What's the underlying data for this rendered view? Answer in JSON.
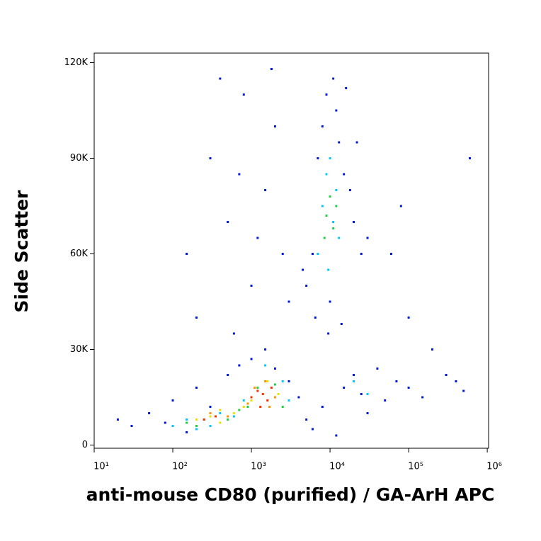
{
  "chart_data": {
    "type": "scatter",
    "xlabel": "anti-mouse CD80 (purified) / GA-ArH APC",
    "ylabel": "Side Scatter",
    "xscale": "log",
    "xlim": [
      10,
      1040000
    ],
    "ylim": [
      -1000,
      123000
    ],
    "xticks": [
      {
        "value": 10,
        "label": "10¹"
      },
      {
        "value": 100,
        "label": "10²"
      },
      {
        "value": 1000,
        "label": "10³"
      },
      {
        "value": 10000,
        "label": "10⁴"
      },
      {
        "value": 100000,
        "label": "10⁵"
      },
      {
        "value": 1000000,
        "label": "10⁶"
      }
    ],
    "yticks": [
      0,
      {
        "value": 30000,
        "label": "30K"
      },
      {
        "value": 60000,
        "label": "60K"
      },
      {
        "value": 90000,
        "label": "90K"
      },
      {
        "value": 120000,
        "label": "120K"
      }
    ],
    "grid": false,
    "series": [
      {
        "color": "#0018d8",
        "x": [
          20,
          30,
          50,
          80,
          100,
          150,
          200,
          300,
          500,
          700,
          1000,
          1500,
          2000,
          3000,
          4000,
          5000,
          6000,
          8000,
          12000,
          15000,
          20000,
          25000,
          30000,
          40000,
          50000,
          70000,
          100000,
          150000,
          300000,
          500000,
          5000,
          6000,
          7000,
          8000,
          9000,
          10000,
          11000,
          12000,
          13000,
          15000,
          18000,
          20000,
          25000,
          6500,
          9500,
          14000,
          16000,
          4500,
          22000,
          30000,
          300,
          500,
          800,
          1000,
          1500,
          2000,
          2500,
          3000,
          200,
          400,
          600,
          1200,
          1800,
          150,
          700,
          60000,
          80000,
          100000,
          200000,
          400000,
          600000
        ],
        "values": [
          8000,
          6000,
          10000,
          7000,
          14000,
          4000,
          18000,
          12000,
          22000,
          25000,
          27000,
          30000,
          24000,
          20000,
          15000,
          8000,
          5000,
          12000,
          3000,
          18000,
          22000,
          16000,
          10000,
          24000,
          14000,
          20000,
          18000,
          15000,
          22000,
          17000,
          50000,
          60000,
          90000,
          100000,
          110000,
          45000,
          115000,
          105000,
          95000,
          85000,
          80000,
          70000,
          60000,
          40000,
          35000,
          38000,
          112000,
          55000,
          95000,
          65000,
          90000,
          70000,
          110000,
          50000,
          80000,
          100000,
          60000,
          45000,
          40000,
          115000,
          35000,
          65000,
          118000,
          60000,
          85000,
          60000,
          75000,
          40000,
          30000,
          20000,
          90000
        ]
      },
      {
        "color": "#00c8ff",
        "x": [
          100,
          150,
          200,
          300,
          400,
          600,
          800,
          1500,
          2500,
          3000,
          7000,
          8000,
          9000,
          10000,
          11000,
          12000,
          13000,
          9500,
          20000,
          30000
        ],
        "values": [
          6000,
          8000,
          5000,
          6000,
          10000,
          9000,
          14000,
          25000,
          20000,
          14000,
          60000,
          75000,
          85000,
          90000,
          70000,
          80000,
          65000,
          55000,
          20000,
          16000
        ]
      },
      {
        "color": "#20d040",
        "x": [
          150,
          200,
          250,
          350,
          500,
          700,
          900,
          1200,
          2000,
          2500,
          9000,
          10000,
          11000,
          12000,
          8500
        ],
        "values": [
          7000,
          6000,
          8000,
          9000,
          8000,
          11000,
          12000,
          18000,
          19000,
          12000,
          72000,
          78000,
          68000,
          75000,
          65000
        ]
      },
      {
        "color": "#e8e000",
        "x": [
          200,
          300,
          400,
          600,
          800,
          1000,
          1600,
          2200,
          400
        ],
        "values": [
          8000,
          9000,
          7000,
          10000,
          12000,
          14000,
          20000,
          16000,
          11000
        ]
      },
      {
        "color": "#ff9000",
        "x": [
          300,
          500,
          900,
          1100,
          1500,
          2000,
          1700
        ],
        "values": [
          10000,
          9000,
          13000,
          18000,
          20000,
          15000,
          12000
        ]
      },
      {
        "color": "#ff3000",
        "x": [
          250,
          350,
          1000,
          1200,
          1400,
          1600,
          1800,
          1300
        ],
        "values": [
          8000,
          9000,
          15000,
          17000,
          16000,
          14000,
          18000,
          12000
        ]
      }
    ]
  }
}
